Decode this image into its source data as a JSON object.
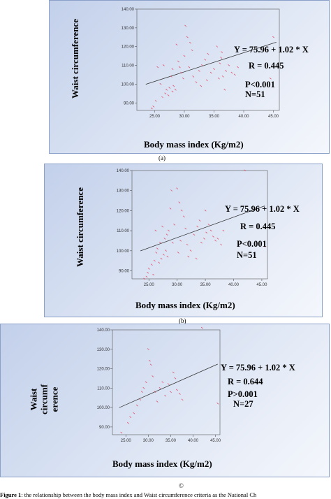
{
  "charts": [
    {
      "id": "a",
      "caption_letter": "(a)",
      "ylabel": "Waist circumference",
      "xlabel": "Body mass index (Kg/m2)",
      "equation": "Y = 75.96 + 1.02 * X",
      "r": "R = 0.445",
      "p": "P<0.001",
      "n": "N=51"
    },
    {
      "id": "b",
      "caption_letter": "(b)",
      "ylabel": "Waist circumference",
      "xlabel": "Body mass index (Kg/m2)",
      "equation": "Y = 75.96 + 1.02 * X",
      "r": "R = 0.445",
      "p": "P<0.001",
      "n": "N=51"
    },
    {
      "id": "c",
      "caption_letter": "©",
      "ylabel_lines": [
        "Waist",
        "circumf",
        "erence"
      ],
      "xlabel": "Body mass index (Kg/m2)",
      "equation": "Y = 75.96 + 1.02 * X",
      "r": "R = 0.644",
      "p": "P>0.001",
      "n": "N=27"
    }
  ],
  "figure_caption": {
    "prefix": "Figure 1",
    "text": ": the relationship between the body mass index  and Waist  circumference criteria as the National Ch"
  },
  "colors": {
    "points": "#e0506a",
    "line": "#333333",
    "axis": "#555555"
  },
  "chart_data": [
    {
      "type": "scatter",
      "xlim": [
        22,
        46
      ],
      "ylim": [
        86,
        140
      ],
      "xticks": [
        "25.00",
        "30.00",
        "35.00",
        "40.00",
        "45.00"
      ],
      "yticks": [
        "90.00",
        "100.00",
        "110.00",
        "120.00",
        "130.00",
        "140.00"
      ],
      "fit": {
        "intercept": 75.96,
        "slope": 1.02
      },
      "points": [
        [
          24.5,
          87
        ],
        [
          24.8,
          88
        ],
        [
          25.2,
          91
        ],
        [
          26,
          100
        ],
        [
          26.3,
          93
        ],
        [
          26.8,
          95
        ],
        [
          27,
          97
        ],
        [
          27.3,
          94
        ],
        [
          27.5,
          98
        ],
        [
          28,
          96
        ],
        [
          28.2,
          99
        ],
        [
          28.5,
          97
        ],
        [
          27.8,
          104
        ],
        [
          28,
          108
        ],
        [
          26.5,
          110
        ],
        [
          28.7,
          121
        ],
        [
          29,
          112
        ],
        [
          29.2,
          109
        ],
        [
          30,
          115
        ],
        [
          30.2,
          131
        ],
        [
          30.5,
          125
        ],
        [
          31,
          122
        ],
        [
          31.3,
          118
        ],
        [
          30.8,
          109
        ],
        [
          31.5,
          104
        ],
        [
          32,
          101
        ],
        [
          32.5,
          107
        ],
        [
          33,
          110
        ],
        [
          33.5,
          113
        ],
        [
          34,
          116
        ],
        [
          33.8,
          102
        ],
        [
          34.5,
          106
        ],
        [
          35,
          108
        ],
        [
          35.5,
          120
        ],
        [
          36,
          111
        ],
        [
          36.2,
          114
        ],
        [
          35.8,
          103
        ],
        [
          36.5,
          104
        ],
        [
          36.8,
          97
        ],
        [
          37,
          107
        ],
        [
          37.5,
          110
        ],
        [
          38,
          106
        ],
        [
          38.5,
          105
        ],
        [
          39,
          109
        ],
        [
          32.8,
          99
        ],
        [
          29.8,
          103
        ],
        [
          25.5,
          109
        ],
        [
          36.3,
          117
        ],
        [
          44.5,
          103
        ],
        [
          45,
          125
        ],
        [
          29.5,
          106
        ]
      ]
    },
    {
      "type": "scatter",
      "xlim": [
        22,
        46
      ],
      "ylim": [
        86,
        140
      ],
      "xticks": [
        "25.00",
        "30.00",
        "35.00",
        "40.00",
        "45.00"
      ],
      "yticks": [
        "90.00",
        "100.00",
        "110.00",
        "120.00",
        "130.00",
        "140.00"
      ],
      "fit": {
        "intercept": 75.96,
        "slope": 1.02
      },
      "points": [
        [
          24.2,
          86
        ],
        [
          24.6,
          87
        ],
        [
          25,
          91
        ],
        [
          25.5,
          93
        ],
        [
          26,
          95
        ],
        [
          26.3,
          99
        ],
        [
          26.8,
          94
        ],
        [
          27.2,
          96
        ],
        [
          27.6,
          98
        ],
        [
          28,
          100
        ],
        [
          28.3,
          97
        ],
        [
          26.5,
          101
        ],
        [
          27,
          104
        ],
        [
          27.8,
          106
        ],
        [
          28.2,
          108
        ],
        [
          28.5,
          110
        ],
        [
          26.2,
          110
        ],
        [
          28.8,
          121
        ],
        [
          29,
          130
        ],
        [
          29.5,
          113
        ],
        [
          30,
          131
        ],
        [
          30.4,
          124
        ],
        [
          30.8,
          120
        ],
        [
          31.2,
          117
        ],
        [
          31.5,
          111
        ],
        [
          30.6,
          105
        ],
        [
          31.8,
          103
        ],
        [
          32.4,
          100
        ],
        [
          33,
          108
        ],
        [
          33.6,
          112
        ],
        [
          34,
          115
        ],
        [
          34.3,
          104
        ],
        [
          34.8,
          106
        ],
        [
          35.2,
          109
        ],
        [
          35.6,
          113
        ],
        [
          36,
          110
        ],
        [
          36.4,
          107
        ],
        [
          36.8,
          105
        ],
        [
          37.2,
          106
        ],
        [
          37.8,
          103
        ],
        [
          38.2,
          110
        ],
        [
          32,
          97
        ],
        [
          25.8,
          88
        ],
        [
          24.8,
          89
        ],
        [
          35,
          120
        ],
        [
          42,
          140
        ],
        [
          45.5,
          102
        ],
        [
          29.2,
          104
        ],
        [
          33.4,
          96
        ],
        [
          30.2,
          99
        ],
        [
          27.4,
          112
        ]
      ]
    },
    {
      "type": "scatter",
      "xlim": [
        22,
        46
      ],
      "ylim": [
        86,
        140
      ],
      "xticks": [
        "25.00",
        "30.00",
        "35.00",
        "40.00",
        "45.00"
      ],
      "yticks": [
        "90.00",
        "100.00",
        "110.00",
        "120.00",
        "130.00",
        "140.00"
      ],
      "fit": {
        "intercept": 75.96,
        "slope": 1.02
      },
      "points": [
        [
          24,
          87
        ],
        [
          25.5,
          92
        ],
        [
          26,
          95
        ],
        [
          26.8,
          97
        ],
        [
          27.5,
          101
        ],
        [
          28.2,
          104
        ],
        [
          28.6,
          108
        ],
        [
          29,
          110
        ],
        [
          29.5,
          113
        ],
        [
          30,
          130
        ],
        [
          30.3,
          124
        ],
        [
          30.6,
          122
        ],
        [
          31,
          116
        ],
        [
          31.5,
          108
        ],
        [
          32,
          103
        ],
        [
          32.6,
          110
        ],
        [
          33.2,
          113
        ],
        [
          33.8,
          106
        ],
        [
          34.5,
          112
        ],
        [
          35,
          108
        ],
        [
          35.6,
          118
        ],
        [
          36,
          115
        ],
        [
          36.4,
          109
        ],
        [
          37,
          107
        ],
        [
          37.6,
          104
        ],
        [
          45.5,
          102
        ],
        [
          42,
          141
        ]
      ]
    }
  ]
}
